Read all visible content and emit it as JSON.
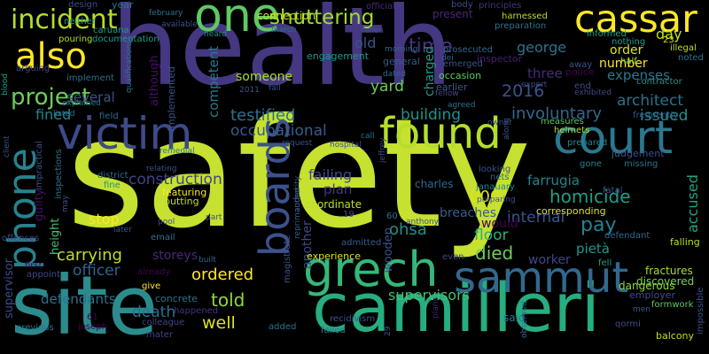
{
  "words": [
    {
      "text": "safety",
      "color": "#c6e12f"
    },
    {
      "text": "health",
      "color": "#453781"
    },
    {
      "text": "site",
      "color": "#2c8c8d"
    },
    {
      "text": "camilleri",
      "color": "#26ad81"
    },
    {
      "text": "grech",
      "color": "#35b779"
    },
    {
      "text": "sammut",
      "color": "#31688e"
    },
    {
      "text": "victim",
      "color": "#3e4a89"
    },
    {
      "text": "court",
      "color": "#2a788e"
    },
    {
      "text": "found",
      "color": "#b5de2b"
    },
    {
      "text": "cassar",
      "color": "#fde725"
    },
    {
      "text": "one",
      "color": "#5ec962"
    },
    {
      "text": "also",
      "color": "#fde725"
    },
    {
      "text": "phone",
      "color": "#26828e"
    },
    {
      "text": "boards",
      "color": "#3b528b"
    },
    {
      "text": "incident",
      "color": "#b5de2b"
    },
    {
      "text": "project",
      "color": "#6ece58"
    },
    {
      "text": "shuttering",
      "color": "#a0da39"
    },
    {
      "text": "time",
      "color": "#46337e"
    },
    {
      "text": "2016",
      "color": "#3b528b"
    },
    {
      "text": "testified",
      "color": "#2c728e"
    },
    {
      "text": "involuntary",
      "color": "#31688e"
    },
    {
      "text": "occupational",
      "color": "#365c8d"
    },
    {
      "text": "building",
      "color": "#21918c"
    },
    {
      "text": "construction",
      "color": "#414487"
    },
    {
      "text": "died",
      "color": "#6ece58"
    },
    {
      "text": "internal",
      "color": "#39568c"
    },
    {
      "text": "pay",
      "color": "#26828e"
    },
    {
      "text": "homicide",
      "color": "#1f9e89"
    },
    {
      "text": "architect",
      "color": "#2c728e"
    },
    {
      "text": "expenses",
      "color": "#2a788e"
    },
    {
      "text": "issued",
      "color": "#21918c"
    },
    {
      "text": "number",
      "color": "#fde725"
    },
    {
      "text": "000",
      "color": "#dce319"
    },
    {
      "text": "farrugia",
      "color": "#25848e"
    },
    {
      "text": "ohsa",
      "color": "#21918c"
    },
    {
      "text": "carrying",
      "color": "#bddf26"
    },
    {
      "text": "officer",
      "color": "#33638d"
    },
    {
      "text": "ordered",
      "color": "#fde725"
    },
    {
      "text": "told",
      "color": "#90d743"
    },
    {
      "text": "well",
      "color": "#dce319"
    },
    {
      "text": "death",
      "color": "#2d708e"
    },
    {
      "text": "supervisors",
      "color": "#44bf70"
    },
    {
      "text": "defendants",
      "color": "#2c728e"
    },
    {
      "text": "worker",
      "color": "#404688"
    },
    {
      "text": "pietà",
      "color": "#1f988b"
    },
    {
      "text": "accused",
      "color": "#20a486"
    },
    {
      "text": "floor",
      "color": "#29af7f"
    },
    {
      "text": "breaches",
      "color": "#365c8d"
    },
    {
      "text": "would",
      "color": "#440154"
    },
    {
      "text": "fined",
      "color": "#26828e"
    },
    {
      "text": "several",
      "color": "#3b528b"
    },
    {
      "text": "yard",
      "color": "#6ece58"
    },
    {
      "text": "someone",
      "color": "#a8db34"
    },
    {
      "text": "competent",
      "color": "#2a788e"
    },
    {
      "text": "although",
      "color": "#471063"
    },
    {
      "text": "charged",
      "color": "#1f988b"
    },
    {
      "text": "three",
      "color": "#482878"
    },
    {
      "text": "george",
      "color": "#2c728e"
    },
    {
      "text": "order",
      "color": "#dce319"
    },
    {
      "text": "day",
      "color": "#bddf26"
    },
    {
      "text": "old",
      "color": "#3b528b"
    },
    {
      "text": "failing",
      "color": "#3e4a89"
    },
    {
      "text": "plan",
      "color": "#46337e"
    },
    {
      "text": "stop",
      "color": "#fde725"
    },
    {
      "text": "storeys",
      "color": "#482878"
    },
    {
      "text": "another",
      "color": "#404688"
    },
    {
      "text": "supervisor",
      "color": "#3e4989"
    },
    {
      "text": "height",
      "color": "#44bf70"
    },
    {
      "text": "guilty",
      "color": "#471063"
    },
    {
      "text": "wooden",
      "color": "#3b528b"
    },
    {
      "text": "fractures",
      "color": "#a8db34"
    },
    {
      "text": "discovered",
      "color": "#7ad151"
    },
    {
      "text": "dangerous",
      "color": "#8fd744"
    },
    {
      "text": "falling",
      "color": "#b5de2b"
    },
    {
      "text": "coordinate",
      "color": "#bddf26"
    },
    {
      "text": "corresponding",
      "color": "#dce319"
    },
    {
      "text": "experience",
      "color": "#dce319"
    },
    {
      "text": "magistrate",
      "color": "#3b528b"
    },
    {
      "text": "connection",
      "color": "#cae11f"
    },
    {
      "text": "engagement",
      "color": "#1f988b"
    },
    {
      "text": "implemented",
      "color": "#3b528b"
    },
    {
      "text": "concrete",
      "color": "#2c728e"
    },
    {
      "text": "featuring",
      "color": "#fde725"
    },
    {
      "text": "putting",
      "color": "#bddf26"
    },
    {
      "text": "district",
      "color": "#31688e"
    },
    {
      "text": "fine",
      "color": "#21918c"
    },
    {
      "text": "janauary",
      "color": "#26828e"
    },
    {
      "text": "charles",
      "color": "#31688e"
    },
    {
      "text": "judgement",
      "color": "#3b528b"
    },
    {
      "text": "frequently",
      "color": "#3b528b"
    },
    {
      "text": "measures",
      "color": "#5ec962"
    },
    {
      "text": "formwork",
      "color": "#5ec962"
    },
    {
      "text": "balcony",
      "color": "#c2df23"
    },
    {
      "text": "employer",
      "color": "#3e4a89"
    },
    {
      "text": "helmets",
      "color": "#a8db34"
    },
    {
      "text": "prepared",
      "color": "#26828e"
    },
    {
      "text": "police",
      "color": "#440154"
    },
    {
      "text": "contractor",
      "color": "#21918c"
    },
    {
      "text": "inspector",
      "color": "#481f70"
    },
    {
      "text": "general",
      "color": "#38598c"
    },
    {
      "text": "occasion",
      "color": "#5ec962"
    },
    {
      "text": "earlier",
      "color": "#365c8d"
    },
    {
      "text": "emerged",
      "color": "#3b528b"
    },
    {
      "text": "prosecuted",
      "color": "#31688e"
    },
    {
      "text": "preparation",
      "color": "#2c728e"
    },
    {
      "text": "harnessed",
      "color": "#bddf26"
    },
    {
      "text": "principles",
      "color": "#46337e"
    },
    {
      "text": "informed",
      "color": "#1fa088"
    },
    {
      "text": "nothing",
      "color": "#1fa088"
    },
    {
      "text": "illegal",
      "color": "#bddf26"
    },
    {
      "text": "noted",
      "color": "#2c728e"
    },
    {
      "text": "half",
      "color": "#8fd744"
    },
    {
      "text": "end",
      "color": "#3e4a89"
    },
    {
      "text": "away",
      "color": "#3b528b"
    },
    {
      "text": "present",
      "color": "#482878"
    },
    {
      "text": "official",
      "color": "#482878"
    },
    {
      "text": "body",
      "color": "#3e4a89"
    },
    {
      "text": "design",
      "color": "#3e4a89"
    },
    {
      "text": "year",
      "color": "#2c728e"
    },
    {
      "text": "february",
      "color": "#2c728e"
    },
    {
      "text": "available",
      "color": "#3b528b"
    },
    {
      "text": "heard",
      "color": "#21918c"
    },
    {
      "text": "march",
      "color": "#2c728e"
    },
    {
      "text": "fallen",
      "color": "#3b528b"
    },
    {
      "text": "morning",
      "color": "#31688e"
    },
    {
      "text": "dated",
      "color": "#31688e"
    },
    {
      "text": "neither",
      "color": "#1f9e89"
    },
    {
      "text": "caruana",
      "color": "#1f9e89"
    },
    {
      "text": "pouring",
      "color": "#b5de2b"
    },
    {
      "text": "documentation",
      "color": "#1f9e89"
    },
    {
      "text": "arguing",
      "color": "#404688"
    },
    {
      "text": "implement",
      "color": "#2c728e"
    },
    {
      "text": "explained",
      "color": "#2c728e"
    },
    {
      "text": "listed",
      "color": "#2c728e"
    },
    {
      "text": "field",
      "color": "#31688e"
    },
    {
      "text": "blood",
      "color": "#1fa088"
    },
    {
      "text": "client",
      "color": "#39568c"
    },
    {
      "text": "qualifications",
      "color": "#2c728e"
    },
    {
      "text": "remedial",
      "color": "#2c728e"
    },
    {
      "text": "impractical",
      "color": "#3b528b"
    },
    {
      "text": "inspections",
      "color": "#2c728e"
    },
    {
      "text": "relating",
      "color": "#3b528b"
    },
    {
      "text": "pool",
      "color": "#3b528b"
    },
    {
      "text": "email",
      "color": "#2c728e"
    },
    {
      "text": "part",
      "color": "#3b528b"
    },
    {
      "text": "built",
      "color": "#31688e"
    },
    {
      "text": "already",
      "color": "#440154"
    },
    {
      "text": "give",
      "color": "#fde725"
    },
    {
      "text": "happened",
      "color": "#46337e"
    },
    {
      "text": "colleague",
      "color": "#404688"
    },
    {
      "text": "mater",
      "color": "#404688"
    },
    {
      "text": "appoint",
      "color": "#3e4a89"
    },
    {
      "text": "first",
      "color": "#440154"
    },
    {
      "text": "offences",
      "color": "#404688"
    },
    {
      "text": "later",
      "color": "#3b528b"
    },
    {
      "text": "may",
      "color": "#3b528b"
    },
    {
      "text": "previous",
      "color": "#2c728e"
    },
    {
      "text": "joseph",
      "color": "#440154"
    },
    {
      "text": "61",
      "color": "#440154"
    },
    {
      "text": "admitted",
      "color": "#365c8d"
    },
    {
      "text": "anthony",
      "color": "#3b528b"
    },
    {
      "text": "reprimanded",
      "color": "#365c8d"
    },
    {
      "text": "19",
      "color": "#3b528b"
    },
    {
      "text": "60",
      "color": "#2c728e"
    },
    {
      "text": "even",
      "color": "#404688"
    },
    {
      "text": "plans",
      "color": "#481f70"
    },
    {
      "text": "recidivism",
      "color": "#3b528b"
    },
    {
      "text": "failed",
      "color": "#2a788e"
    },
    {
      "text": "added",
      "color": "#2c728e"
    },
    {
      "text": "29",
      "color": "#3b528b"
    },
    {
      "text": "said",
      "color": "#2a788e"
    },
    {
      "text": "qormi",
      "color": "#3e4a89"
    },
    {
      "text": "observed",
      "color": "#2c728e"
    },
    {
      "text": "men",
      "color": "#365c8d"
    },
    {
      "text": "impossible",
      "color": "#3b528b"
    },
    {
      "text": "missing",
      "color": "#2c728e"
    },
    {
      "text": "gone",
      "color": "#26828e"
    },
    {
      "text": "fatal",
      "color": "#3b528b"
    },
    {
      "text": "defendant",
      "color": "#31688e"
    },
    {
      "text": "fell",
      "color": "#1f9e89"
    },
    {
      "text": "preparing",
      "color": "#3b528b"
    },
    {
      "text": "nets",
      "color": "#31688e"
    },
    {
      "text": "looking",
      "color": "#3b528b"
    },
    {
      "text": "request",
      "color": "#3b528b"
    },
    {
      "text": "hospital",
      "color": "#3b528b"
    },
    {
      "text": "call",
      "color": "#2c728e"
    },
    {
      "text": "jeffrey",
      "color": "#404688"
    },
    {
      "text": "along",
      "color": "#3b528b"
    },
    {
      "text": "owner",
      "color": "#3b528b"
    },
    {
      "text": "agreed",
      "color": "#2c728e"
    },
    {
      "text": "fall",
      "color": "#3b528b"
    },
    {
      "text": "2011",
      "color": "#3b528b"
    },
    {
      "text": "dei",
      "color": "#31688e"
    },
    {
      "text": "fellow",
      "color": "#3e4a89"
    },
    {
      "text": "authority",
      "color": "#3b528b"
    },
    {
      "text": "expert",
      "color": "#3e4a89"
    },
    {
      "text": "exhibited",
      "color": "#3e4a89"
    },
    {
      "text": "23",
      "color": "#dce319"
    }
  ]
}
